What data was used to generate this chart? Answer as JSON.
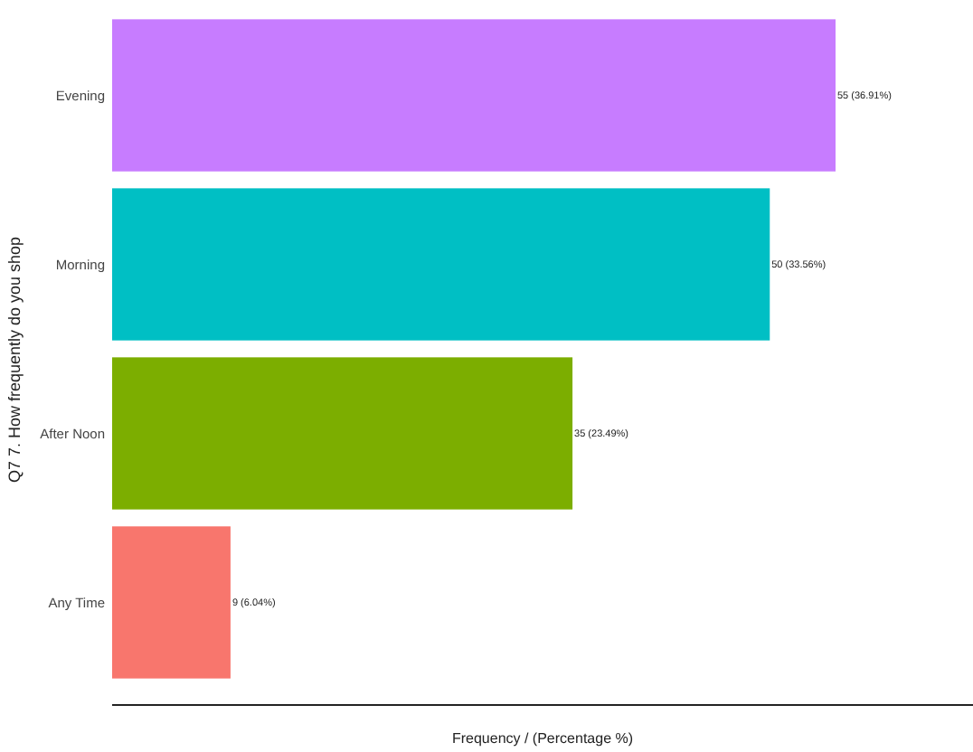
{
  "chart_data": {
    "type": "bar",
    "orientation": "horizontal",
    "ylabel": "Q7 7. How frequently do you shop",
    "xlabel": "Frequency / (Percentage %)",
    "categories": [
      "Evening",
      "Morning",
      "After Noon",
      "Any Time"
    ],
    "values": [
      55,
      50,
      35,
      9
    ],
    "colors": [
      "#c77cff",
      "#00bfc4",
      "#7cae00",
      "#f8766d"
    ],
    "value_labels": [
      "55 (36.91%)",
      "50 (33.56%)",
      "35 (23.49%)",
      "9 (6.04%)"
    ],
    "grid": false
  }
}
